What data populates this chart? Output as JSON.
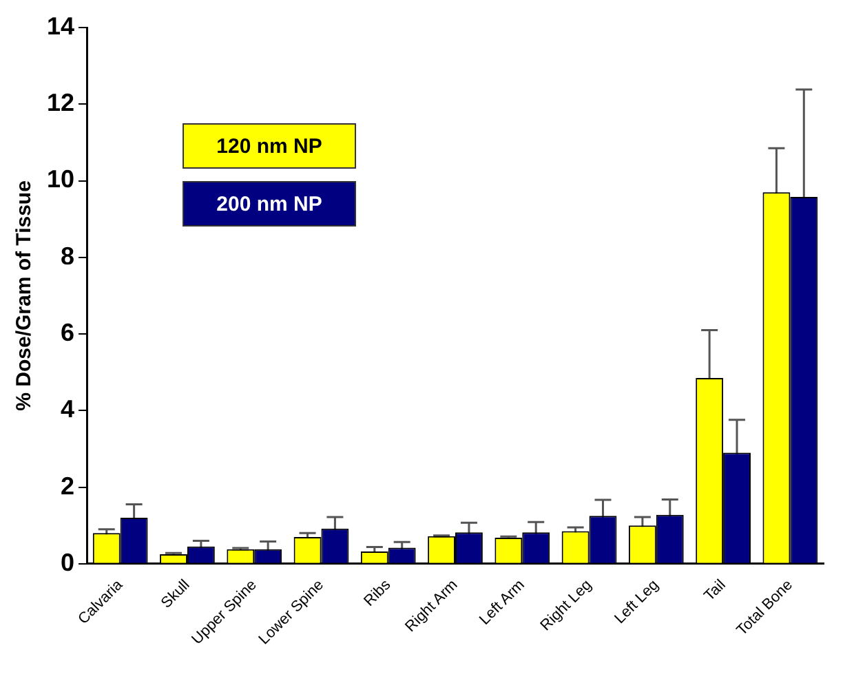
{
  "chart_data": {
    "type": "bar",
    "ylabel": "% Dose/Gram of Tissue",
    "categories": [
      "Calvaria",
      "Skull",
      "Upper Spine",
      "Lower Spine",
      "Ribs",
      "Right Arm",
      "Left Arm",
      "Right Leg",
      "Left Leg",
      "Tail",
      "Total Bone"
    ],
    "series": [
      {
        "name": "120 nm NP",
        "color": "#ffff00",
        "values": [
          0.8,
          0.25,
          0.38,
          0.7,
          0.32,
          0.72,
          0.68,
          0.85,
          1.0,
          4.85,
          9.7
        ],
        "errors": [
          0.1,
          0.03,
          0.03,
          0.1,
          0.12,
          0.02,
          0.03,
          0.1,
          0.22,
          1.25,
          1.15
        ]
      },
      {
        "name": "200 nm NP",
        "color": "#000080",
        "values": [
          1.2,
          0.45,
          0.38,
          0.92,
          0.42,
          0.82,
          0.82,
          1.25,
          1.28,
          2.9,
          9.58
        ],
        "errors": [
          0.35,
          0.15,
          0.2,
          0.3,
          0.15,
          0.25,
          0.27,
          0.42,
          0.4,
          0.86,
          2.8
        ]
      }
    ],
    "ylim": [
      0,
      14
    ],
    "yticks": [
      0,
      2,
      4,
      6,
      8,
      10,
      12,
      14
    ],
    "grid": false,
    "legend": "top left"
  }
}
